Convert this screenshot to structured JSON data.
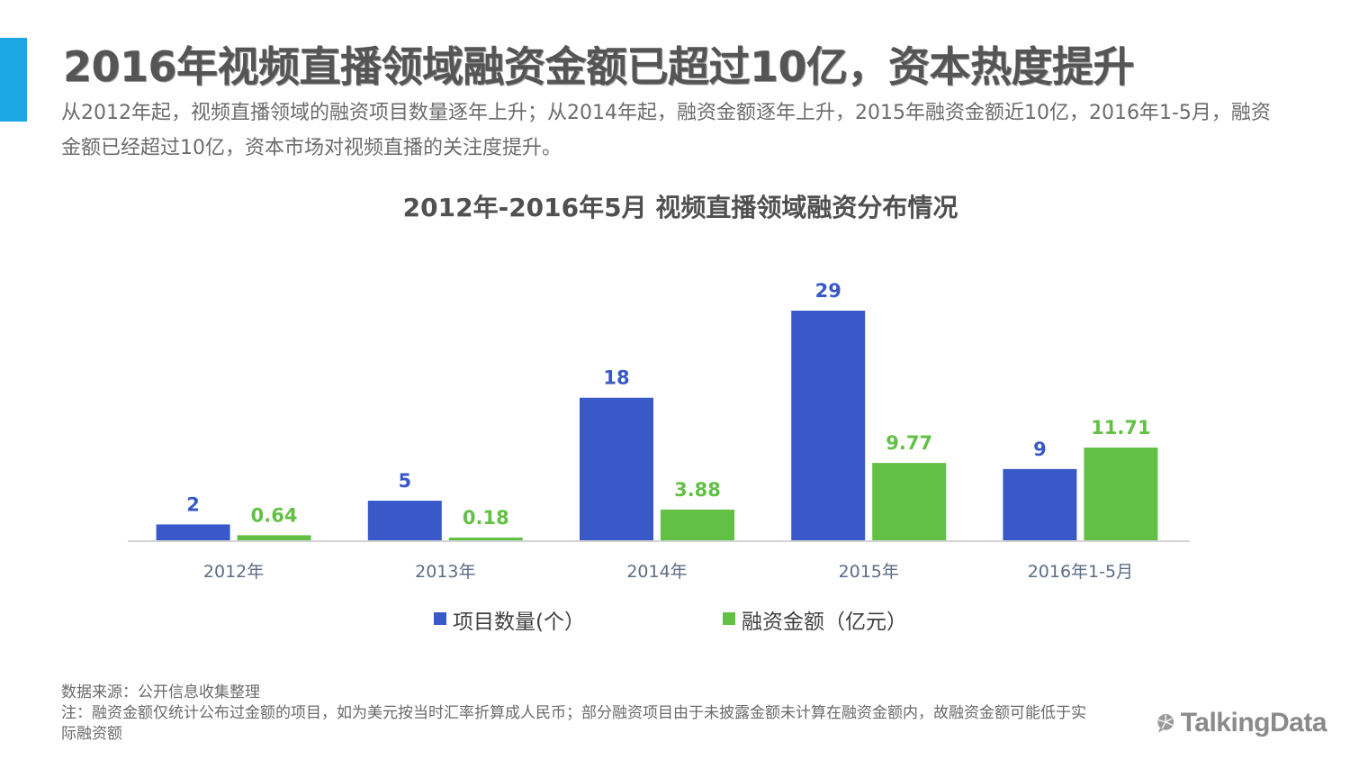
{
  "header": {
    "headline": "2016年视频直播领域融资金额已超过10亿，资本热度提升",
    "subtitle": "从2012年起，视频直播领域的融资项目数量逐年上升；从2014年起，融资金额逐年上升，2015年融资金额近10亿，2016年1-5月，融资金额已经超过10亿，资本市场对视频直播的关注度提升。"
  },
  "chart_data": {
    "type": "bar",
    "title": "2012年-2016年5月 视频直播领域融资分布情况",
    "categories": [
      "2012年",
      "2013年",
      "2014年",
      "2015年",
      "2016年1-5月"
    ],
    "series": [
      {
        "name": "项目数量(个）",
        "color": "#3a59c8",
        "values": [
          2,
          5,
          18,
          29,
          9
        ],
        "labels": [
          "2",
          "5",
          "18",
          "29",
          "9"
        ]
      },
      {
        "name": "融资金额（亿元）",
        "color": "#62c144",
        "values": [
          0.64,
          0.18,
          3.88,
          9.77,
          11.71
        ],
        "labels": [
          "0.64",
          "0.18",
          "3.88",
          "9.77",
          "11.71"
        ]
      }
    ],
    "ylim": [
      0,
      29
    ],
    "grid": false,
    "legend": "bottom"
  },
  "footer": {
    "source": "数据来源：公开信息收集整理",
    "note": "注：融资金额仅统计公布过金额的项目，如为美元按当时汇率折算成人民币；部分融资项目由于未披露金额未计算在融资金额内，故融资金额可能低于实际融资额"
  },
  "logo": {
    "text": "TalkingData",
    "icon": "talkingdata-logo-icon"
  }
}
